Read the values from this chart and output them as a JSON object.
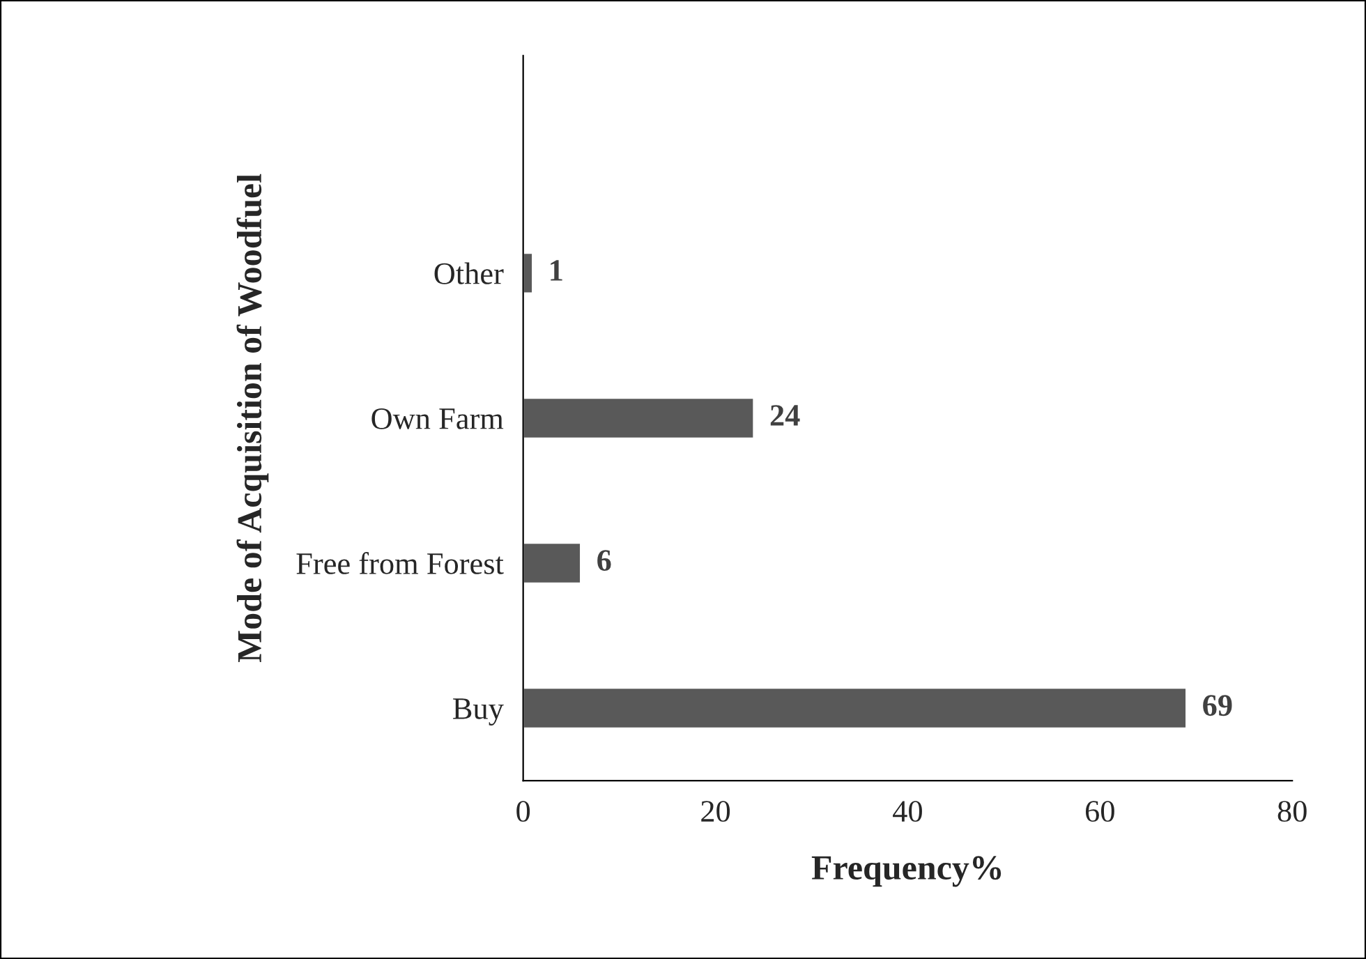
{
  "chart_data": {
    "type": "bar",
    "orientation": "horizontal",
    "xlabel": "Frequency%",
    "ylabel": "Mode of Acquisition of Woodfuel",
    "categories": [
      null,
      "Other",
      "Own Farm",
      "Free from Forest",
      "Buy"
    ],
    "values": [
      null,
      1,
      24,
      6,
      69
    ],
    "color": "#595959",
    "xlim": [
      0,
      80
    ],
    "xticks": [
      0,
      20,
      40,
      60,
      80
    ],
    "grid": false,
    "data_labels": true
  }
}
